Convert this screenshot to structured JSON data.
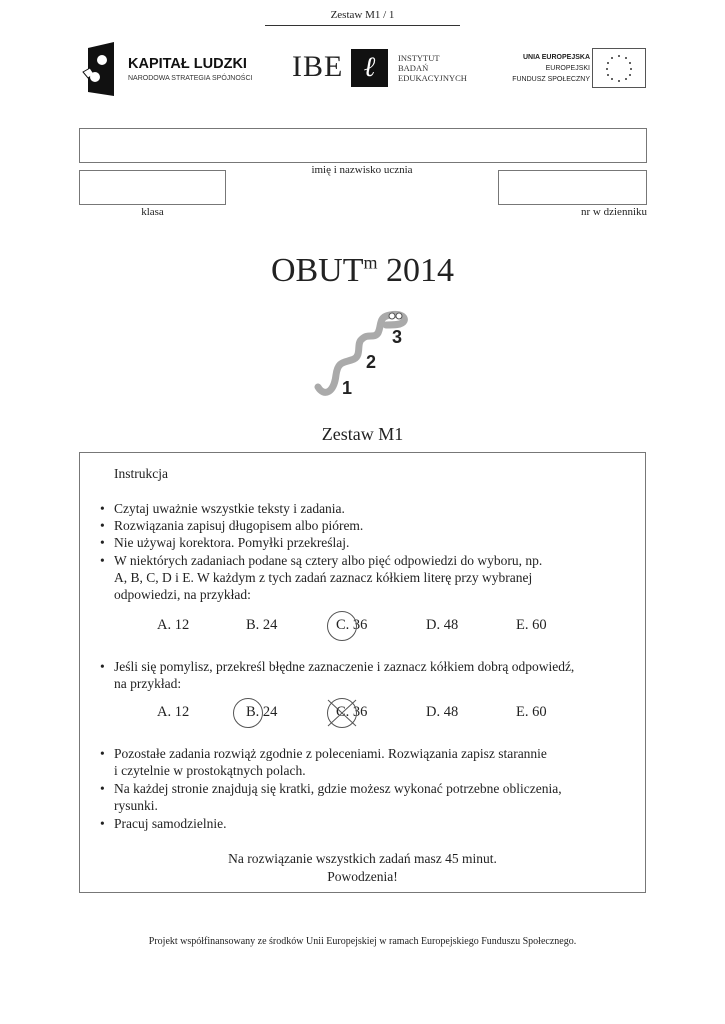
{
  "header": {
    "page_label": "Zestaw M1 / 1"
  },
  "logos": {
    "kapital": {
      "title": "KAPITAŁ LUDZKI",
      "subtitle": "NARODOWA STRATEGIA SPÓJNOŚCI"
    },
    "ibe": {
      "abbr": "IBE",
      "lines": [
        "INSTYTUT",
        "BADAŃ",
        "EDUKACYJNYCH"
      ]
    },
    "eu": {
      "lines": [
        "UNIA EUROPEJSKA",
        "EUROPEJSKI",
        "FUNDUSZ SPOŁECZNY"
      ]
    }
  },
  "form": {
    "name_label": "imię i nazwisko ucznia",
    "class_label": "klasa",
    "number_label": "nr w dzienniku"
  },
  "title": {
    "main": "OBUT",
    "sup": "m",
    "year": "2014",
    "steps": [
      "1",
      "2",
      "3"
    ]
  },
  "set_title": "Zestaw M1",
  "instructions": {
    "heading": "Instrukcja",
    "bullets1": [
      "Czytaj uważnie wszystkie teksty i zadania.",
      "Rozwiązania zapisuj długopisem albo piórem.",
      "Nie używaj korektora. Pomyłki przekreślaj."
    ],
    "bullet4": [
      "W niektórych zadaniach podane są cztery  albo pięć odpowiedzi do wyboru, np.",
      "A, B, C, D i E. W każdym z tych zadań zaznacz kółkiem literę przy wybranej",
      "odpowiedzi, na przykład:"
    ],
    "example1": [
      "A. 12",
      "B. 24",
      "C. 36",
      "D. 48",
      "E. 60"
    ],
    "bullet5": [
      "Jeśli się pomylisz, przekreśl błędne zaznaczenie i zaznacz kółkiem dobrą odpowiedź,",
      "na przykład:"
    ],
    "example2": [
      "A. 12",
      "B. 24",
      "C. 36",
      "D. 48",
      "E. 60"
    ],
    "bullet6": [
      "Pozostałe zadania rozwiąż zgodnie z poleceniami. Rozwiązania zapisz starannie",
      "i czytelnie w prostokątnych polach."
    ],
    "bullet7": [
      "Na każdej stronie znajdują się kratki, gdzie możesz wykonać potrzebne obliczenia,",
      "rysunki."
    ],
    "bullet8": [
      "Pracuj samodzielnie."
    ],
    "footer": [
      "Na rozwiązanie wszystkich zadań masz 45 minut.",
      "Powodzenia!"
    ]
  },
  "footer": "Projekt współfinansowany ze środków Unii Europejskiej w ramach Europejskiego Funduszu Społecznego."
}
